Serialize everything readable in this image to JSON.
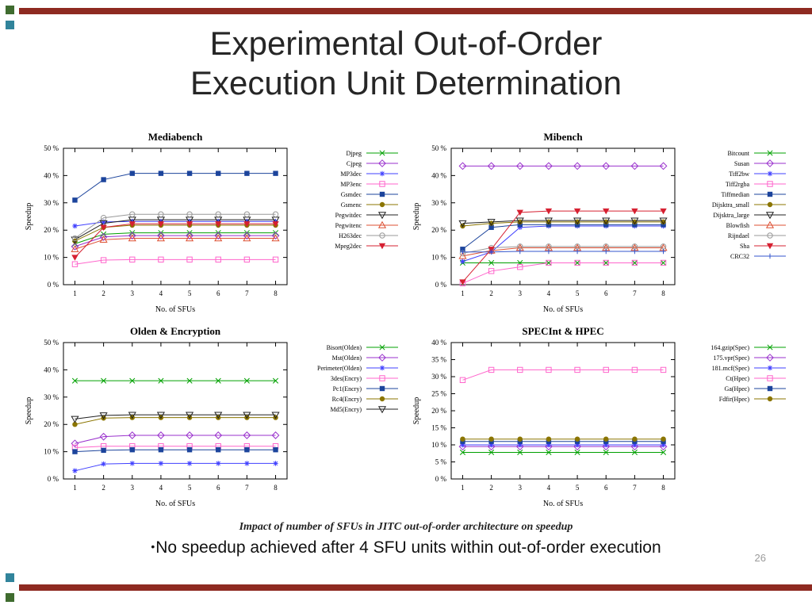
{
  "slide": {
    "title_line1": "Experimental Out-of-Order",
    "title_line2": "Execution Unit Determination",
    "caption": "Impact of number of SFUs in JITC out-of-order architecture on speedup",
    "bullet_glyph": "•",
    "bullet": "No speedup achieved after 4 SFU units within out-of-order execution",
    "page_number": "26",
    "accent_colors": {
      "bar_maroon": "#8E2A21",
      "square_green": "#3F6C2F",
      "square_teal": "#31849B"
    }
  },
  "chart_data": [
    {
      "type": "line",
      "title": "Mediabench",
      "xlabel": "No. of SFUs",
      "ylabel": "Speedup",
      "x": [
        1,
        2,
        3,
        4,
        5,
        6,
        7,
        8
      ],
      "ylim": [
        0,
        50
      ],
      "ytick_step": 10,
      "ytick_suffix": " %",
      "legend_position": "right",
      "grid": false,
      "series": [
        {
          "name": "Djpeg",
          "color": "#00A000",
          "marker": "x",
          "values": [
            15,
            18.5,
            19,
            19,
            19,
            19,
            19,
            19
          ]
        },
        {
          "name": "Cjpeg",
          "color": "#9A32CD",
          "marker": "diamond",
          "values": [
            14,
            17.5,
            18,
            18,
            18,
            18,
            18,
            18
          ]
        },
        {
          "name": "MP3dec",
          "color": "#4040FF",
          "marker": "asterisk",
          "values": [
            21.5,
            23,
            23.2,
            23.2,
            23.2,
            23.2,
            23.2,
            23.2
          ]
        },
        {
          "name": "MP3enc",
          "color": "#FF66CC",
          "marker": "square",
          "values": [
            7.5,
            9,
            9.2,
            9.2,
            9.2,
            9.2,
            9.2,
            9.2
          ]
        },
        {
          "name": "Gsmdec",
          "color": "#1C449C",
          "marker": "square-filled",
          "values": [
            31,
            38.5,
            40.8,
            40.8,
            40.8,
            40.8,
            40.8,
            40.8
          ]
        },
        {
          "name": "Gsmenc",
          "color": "#8B7500",
          "marker": "circle-filled",
          "values": [
            16,
            21,
            21.8,
            21.8,
            21.8,
            21.8,
            21.8,
            21.8
          ]
        },
        {
          "name": "Pegwitdec",
          "color": "#202020",
          "marker": "triangle-down",
          "values": [
            16.5,
            22.5,
            23.8,
            23.8,
            23.8,
            23.8,
            23.8,
            23.8
          ]
        },
        {
          "name": "Pegwitenc",
          "color": "#DD5033",
          "marker": "triangle-up",
          "values": [
            13,
            16.5,
            17,
            17,
            17,
            17,
            17,
            17
          ]
        },
        {
          "name": "H263dec",
          "color": "#999999",
          "marker": "circle",
          "values": [
            17,
            24.5,
            25.8,
            25.8,
            25.8,
            25.8,
            25.8,
            25.8
          ]
        },
        {
          "name": "Mpeg2dec",
          "color": "#D62031",
          "marker": "triangle-down-filled",
          "values": [
            10,
            21,
            22.3,
            22.3,
            22.3,
            22.3,
            22.3,
            22.3
          ]
        }
      ]
    },
    {
      "type": "line",
      "title": "Mibench",
      "xlabel": "No. of SFUs",
      "ylabel": "Speedup",
      "x": [
        1,
        2,
        3,
        4,
        5,
        6,
        7,
        8
      ],
      "ylim": [
        0,
        50
      ],
      "ytick_step": 10,
      "ytick_suffix": " %",
      "legend_position": "right",
      "grid": false,
      "series": [
        {
          "name": "Bitcount",
          "color": "#00A000",
          "marker": "x",
          "values": [
            8,
            8,
            8,
            8,
            8,
            8,
            8,
            8
          ]
        },
        {
          "name": "Susan",
          "color": "#9A32CD",
          "marker": "diamond",
          "values": [
            43.5,
            43.5,
            43.5,
            43.5,
            43.5,
            43.5,
            43.5,
            43.5
          ]
        },
        {
          "name": "Tiff2bw",
          "color": "#4040FF",
          "marker": "asterisk",
          "values": [
            8.5,
            12,
            21,
            21.5,
            21.5,
            21.5,
            21.5,
            21.5
          ]
        },
        {
          "name": "Tiff2rgba",
          "color": "#FF66CC",
          "marker": "square",
          "values": [
            0.5,
            5,
            6.5,
            8,
            8,
            8,
            8,
            8
          ]
        },
        {
          "name": "Tiffmedian",
          "color": "#1C449C",
          "marker": "square-filled",
          "values": [
            13,
            21,
            22,
            22,
            22,
            22,
            22,
            22
          ]
        },
        {
          "name": "Dijsktra_small",
          "color": "#8B7500",
          "marker": "circle-filled",
          "values": [
            21.5,
            22.5,
            23,
            23,
            23,
            23,
            23,
            23
          ]
        },
        {
          "name": "Dijsktra_large",
          "color": "#202020",
          "marker": "triangle-down",
          "values": [
            22.5,
            23,
            23.5,
            23.5,
            23.5,
            23.5,
            23.5,
            23.5
          ]
        },
        {
          "name": "Blowfish",
          "color": "#DD5033",
          "marker": "triangle-up",
          "values": [
            10.5,
            12.5,
            13.5,
            13.5,
            13.5,
            13.5,
            13.5,
            13.5
          ]
        },
        {
          "name": "Rijndael",
          "color": "#999999",
          "marker": "circle",
          "values": [
            11.5,
            13.5,
            14,
            14,
            14,
            14,
            14,
            14
          ]
        },
        {
          "name": "Sha",
          "color": "#D62031",
          "marker": "triangle-down-filled",
          "values": [
            1,
            13,
            26.5,
            27,
            27,
            27,
            27,
            27
          ]
        },
        {
          "name": "CRC32",
          "color": "#3355CC",
          "marker": "plus",
          "values": [
            12,
            12,
            12.2,
            12.2,
            12.2,
            12.2,
            12.2,
            12.2
          ]
        }
      ]
    },
    {
      "type": "line",
      "title": "Olden & Encryption",
      "xlabel": "No. of SFUs",
      "ylabel": "Speedup",
      "x": [
        1,
        2,
        3,
        4,
        5,
        6,
        7,
        8
      ],
      "ylim": [
        0,
        50
      ],
      "ytick_step": 10,
      "ytick_suffix": " %",
      "legend_position": "right",
      "grid": false,
      "series": [
        {
          "name": "Bisort(Olden)",
          "color": "#00A000",
          "marker": "x",
          "values": [
            36,
            36,
            36,
            36,
            36,
            36,
            36,
            36
          ]
        },
        {
          "name": "Mst(Olden)",
          "color": "#9A32CD",
          "marker": "diamond",
          "values": [
            13,
            15.5,
            16,
            16,
            16,
            16,
            16,
            16
          ]
        },
        {
          "name": "Perimeter(Olden)",
          "color": "#4040FF",
          "marker": "asterisk",
          "values": [
            3,
            5.5,
            5.7,
            5.7,
            5.7,
            5.7,
            5.7,
            5.7
          ]
        },
        {
          "name": "3des(Encry)",
          "color": "#FF66CC",
          "marker": "square",
          "values": [
            11.5,
            12,
            12,
            12,
            12,
            12,
            12,
            12
          ]
        },
        {
          "name": "Pc1(Encry)",
          "color": "#1C449C",
          "marker": "square-filled",
          "values": [
            10,
            10.5,
            10.7,
            10.7,
            10.7,
            10.7,
            10.7,
            10.7
          ]
        },
        {
          "name": "Rc4(Encry)",
          "color": "#8B7500",
          "marker": "circle-filled",
          "values": [
            20,
            22.3,
            22.5,
            22.5,
            22.5,
            22.5,
            22.5,
            22.5
          ]
        },
        {
          "name": "Md5(Encry)",
          "color": "#202020",
          "marker": "triangle-down",
          "values": [
            22,
            23.3,
            23.5,
            23.5,
            23.5,
            23.5,
            23.5,
            23.5
          ]
        }
      ]
    },
    {
      "type": "line",
      "title": "SPECInt & HPEC",
      "xlabel": "No. of SFUs",
      "ylabel": "Speedup",
      "x": [
        1,
        2,
        3,
        4,
        5,
        6,
        7,
        8
      ],
      "ylim": [
        0,
        40
      ],
      "ytick_step": 5,
      "ytick_suffix": " %",
      "legend_position": "right",
      "grid": false,
      "series": [
        {
          "name": "164.gzip(Spec)",
          "color": "#00A000",
          "marker": "x",
          "values": [
            7.8,
            7.8,
            7.8,
            7.8,
            7.8,
            7.8,
            7.8,
            7.8
          ]
        },
        {
          "name": "175.vpr(Spec)",
          "color": "#9A32CD",
          "marker": "diamond",
          "values": [
            9.5,
            9.5,
            9.5,
            9.5,
            9.5,
            9.5,
            9.5,
            9.5
          ]
        },
        {
          "name": "181.mcf(Spec)",
          "color": "#4040FF",
          "marker": "asterisk",
          "values": [
            10,
            10,
            10,
            10,
            10,
            10,
            10,
            10
          ]
        },
        {
          "name": "Ct(Hpec)",
          "color": "#FF66CC",
          "marker": "square",
          "values": [
            29,
            32,
            32,
            32,
            32,
            32,
            32,
            32
          ]
        },
        {
          "name": "Ga(Hpec)",
          "color": "#1C449C",
          "marker": "square-filled",
          "values": [
            11,
            11,
            11,
            11,
            11,
            11,
            11,
            11
          ]
        },
        {
          "name": "Fdfir(Hpec)",
          "color": "#8B7500",
          "marker": "circle-filled",
          "values": [
            11.7,
            11.7,
            11.7,
            11.7,
            11.7,
            11.7,
            11.7,
            11.7
          ]
        }
      ]
    }
  ]
}
